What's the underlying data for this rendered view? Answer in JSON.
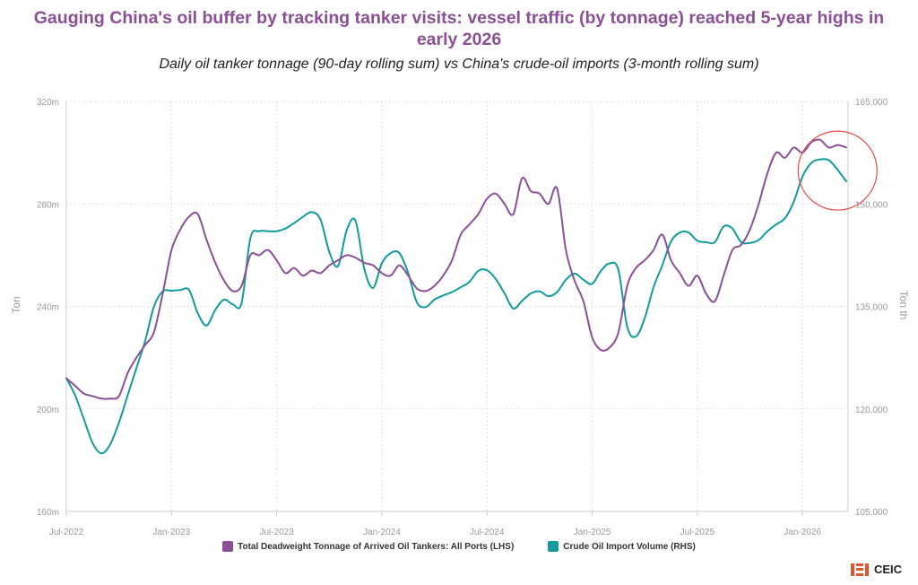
{
  "title_lines": [
    "Gauging China's oil buffer by tracking tanker visits: vessel traffic (by tonnage) reached 5-year highs in",
    "early 2026"
  ],
  "subtitle": "Daily oil tanker tonnage (90-day rolling sum) vs China's crude-oil imports (3-month rolling sum)",
  "brand": "CEIC",
  "colors": {
    "lhs_series": "#8b4f98",
    "rhs_series": "#139b9b",
    "highlight_circle": "#e84a4a",
    "axis_text": "#999999"
  },
  "chart_data": {
    "type": "line",
    "xlabel": "",
    "ylabel_left": "Ton",
    "ylabel_right": "Ton th",
    "x_ticks": [
      "Jul-2022",
      "Jan-2023",
      "Jul-2023",
      "Jan-2024",
      "Jul-2024",
      "Jan-2025",
      "Jul-2025",
      "Jan-2026"
    ],
    "x_tick_months": [
      0,
      6,
      12,
      18,
      24,
      30,
      36,
      42
    ],
    "xlim_months": [
      0,
      44.6
    ],
    "ylim_left": [
      160,
      320
    ],
    "yticks_left": [
      "160m",
      "200m",
      "240m",
      "280m",
      "320m"
    ],
    "ylim_right": [
      105000,
      165000
    ],
    "yticks_right": [
      "105,000",
      "120,000",
      "135,000",
      "150,000",
      "165,000"
    ],
    "grid": true,
    "legend_position": "bottom",
    "highlight": {
      "center_month": 44.0,
      "center_value_lhs": 293,
      "note": "circled recent peak"
    },
    "series": [
      {
        "name": "Total Deadweight Tonnage of Arrived Oil Tankers: All Ports (LHS)",
        "axis": "left",
        "x_months": [
          0,
          0.5,
          1,
          1.5,
          2,
          2.5,
          3,
          3.5,
          4,
          4.5,
          5,
          5.5,
          6,
          6.5,
          7,
          7.5,
          8,
          8.5,
          9,
          9.5,
          10,
          10.5,
          11,
          11.5,
          12,
          12.5,
          13,
          13.5,
          14,
          14.5,
          15,
          15.5,
          16,
          16.5,
          17,
          17.5,
          18,
          18.5,
          19,
          19.5,
          20,
          20.5,
          21,
          21.5,
          22,
          22.5,
          23,
          23.5,
          24,
          24.5,
          25,
          25.5,
          26,
          26.5,
          27,
          27.5,
          28,
          28.5,
          29,
          29.5,
          30,
          30.5,
          31,
          31.5,
          32,
          32.5,
          33,
          33.5,
          34,
          34.5,
          35,
          35.5,
          36,
          36.5,
          37,
          37.5,
          38,
          38.5,
          39,
          39.5,
          40,
          40.5,
          41,
          41.5,
          42,
          42.5,
          43,
          43.5,
          44,
          44.5
        ],
        "values": [
          212,
          209,
          206,
          205,
          204,
          204,
          205,
          214,
          220,
          225,
          230,
          245,
          262,
          270,
          275,
          276,
          266,
          257,
          250,
          246,
          248,
          260,
          260,
          262,
          258,
          253,
          255,
          252,
          254,
          253,
          256,
          258,
          260,
          259,
          257,
          256,
          253,
          252,
          256,
          252,
          247,
          246,
          248,
          252,
          258,
          268,
          272,
          276,
          282,
          284,
          280,
          276,
          290,
          285,
          284,
          280,
          286,
          262,
          250,
          242,
          228,
          223,
          224,
          230,
          248,
          255,
          258,
          262,
          268,
          258,
          253,
          248,
          252,
          245,
          242,
          252,
          262,
          264,
          270,
          280,
          292,
          300,
          298,
          302,
          300,
          304,
          305,
          302,
          303,
          302
        ]
      },
      {
        "name": "Crude Oil Import Volume (RHS)",
        "axis": "right",
        "x_months": [
          0,
          0.5,
          1,
          1.5,
          2,
          2.5,
          3,
          3.5,
          4,
          4.5,
          5,
          5.5,
          6,
          6.5,
          7,
          7.5,
          8,
          8.5,
          9,
          9.5,
          10,
          10.5,
          11,
          11.5,
          12,
          12.5,
          13,
          13.5,
          14,
          14.5,
          15,
          15.5,
          16,
          16.5,
          17,
          17.5,
          18,
          18.5,
          19,
          19.5,
          20,
          20.5,
          21,
          21.5,
          22,
          22.5,
          23,
          23.5,
          24,
          24.5,
          25,
          25.5,
          26,
          26.5,
          27,
          27.5,
          28,
          28.5,
          29,
          29.5,
          30,
          30.5,
          31,
          31.5,
          32,
          32.5,
          33,
          33.5,
          34,
          34.5,
          35,
          35.5,
          36,
          36.5,
          37,
          37.5,
          38,
          38.5,
          39,
          39.5,
          40,
          40.5,
          41,
          41.5,
          42,
          42.5,
          43,
          43.5,
          44,
          44.5
        ],
        "values": [
          124500,
          122000,
          118500,
          115000,
          113500,
          114800,
          118000,
          122000,
          126000,
          130000,
          135000,
          137200,
          137300,
          137400,
          137400,
          134000,
          132200,
          134500,
          136000,
          135300,
          135500,
          145000,
          146000,
          146000,
          146000,
          146400,
          147200,
          148100,
          148800,
          147700,
          143000,
          140900,
          146200,
          147500,
          140500,
          137700,
          141300,
          142800,
          142800,
          139900,
          135600,
          134900,
          136000,
          136600,
          137100,
          137800,
          138600,
          140200,
          140300,
          139000,
          136900,
          134700,
          135800,
          136900,
          137200,
          136500,
          137100,
          138900,
          139800,
          138900,
          138300,
          140200,
          141300,
          140300,
          132000,
          130600,
          133300,
          137800,
          141000,
          144500,
          145800,
          145800,
          144600,
          144400,
          144400,
          146700,
          146400,
          144400,
          144300,
          144700,
          146000,
          147000,
          147900,
          150300,
          154000,
          156000,
          156500,
          156400,
          155000,
          153300
        ]
      }
    ]
  }
}
